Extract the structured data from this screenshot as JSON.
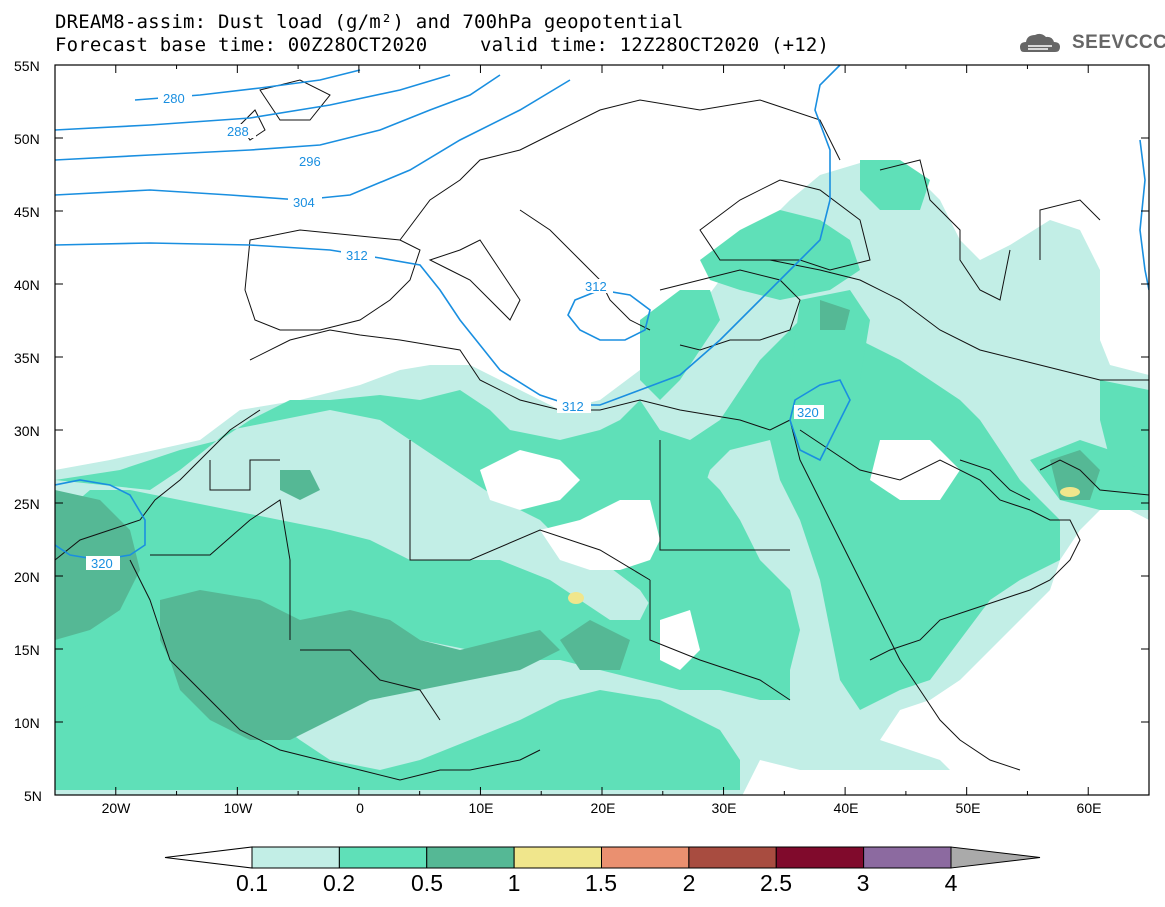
{
  "header": {
    "title_line1": "DREAM8-assim: Dust load (g/m²) and 700hPa geopotential",
    "title_line2_left": "Forecast base time: 00Z28OCT2020",
    "title_line2_right": "valid time: 12Z28OCT2020 (+12)",
    "logo_text": "SEEVCCC"
  },
  "map": {
    "lon_range": [
      -25,
      65
    ],
    "lat_range": [
      5,
      55
    ],
    "lat_labels": [
      "55N",
      "50N",
      "45N",
      "40N",
      "35N",
      "30N",
      "25N",
      "20N",
      "15N",
      "10N",
      "5N"
    ],
    "lon_labels": [
      "20W",
      "10W",
      "0",
      "10E",
      "20E",
      "30E",
      "40E",
      "50E",
      "60E"
    ],
    "contour_labels": [
      "280",
      "288",
      "296",
      "304",
      "312",
      "312",
      "312",
      "320",
      "320"
    ],
    "contour_color": "#1a8fe0"
  },
  "colorbar": {
    "levels": [
      "0.1",
      "0.2",
      "0.5",
      "1",
      "1.5",
      "2",
      "2.5",
      "3",
      "4"
    ],
    "colors": [
      "#c2eee6",
      "#5fe0b8",
      "#55b895",
      "#f0e68c",
      "#ea9070",
      "#a84c40",
      "#800a2c",
      "#8c6aa0"
    ],
    "under_color": "#ffffff",
    "over_color": "#aaaaaa"
  }
}
